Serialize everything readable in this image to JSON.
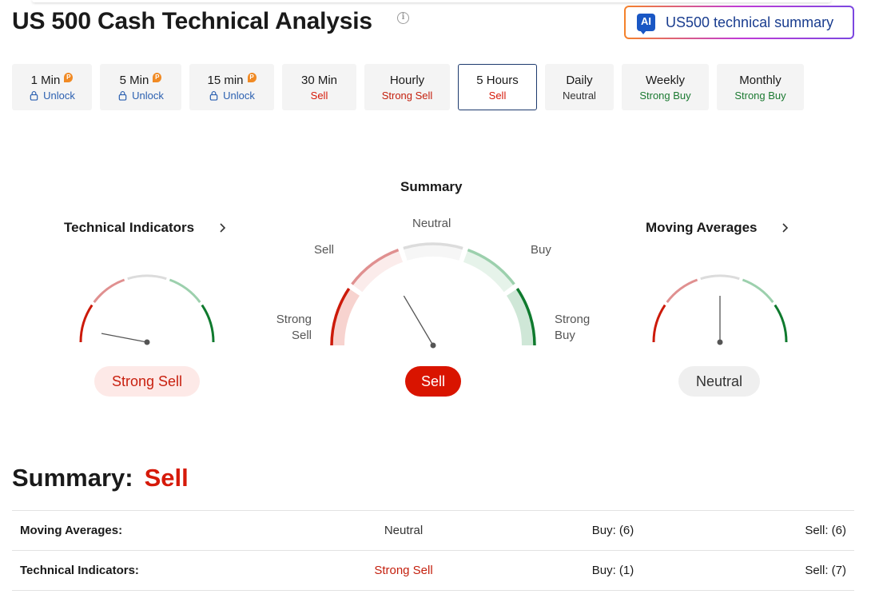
{
  "header": {
    "title": "US 500 Cash Technical Analysis",
    "info_icon": "info-icon",
    "ai_button": {
      "badge": "AI",
      "label": "US500 technical summary"
    }
  },
  "timeframes": [
    {
      "label": "1 Min",
      "status": "Unlock",
      "tone": "unlock",
      "locked": true,
      "active": false
    },
    {
      "label": "5 Min",
      "status": "Unlock",
      "tone": "unlock",
      "locked": true,
      "active": false
    },
    {
      "label": "15 min",
      "status": "Unlock",
      "tone": "unlock",
      "locked": true,
      "active": false
    },
    {
      "label": "30 Min",
      "status": "Sell",
      "tone": "sell",
      "locked": false,
      "active": false
    },
    {
      "label": "Hourly",
      "status": "Strong Sell",
      "tone": "ssell",
      "locked": false,
      "active": false
    },
    {
      "label": "5 Hours",
      "status": "Sell",
      "tone": "sell",
      "locked": false,
      "active": true
    },
    {
      "label": "Daily",
      "status": "Neutral",
      "tone": "neutral",
      "locked": false,
      "active": false
    },
    {
      "label": "Weekly",
      "status": "Strong Buy",
      "tone": "sbuy",
      "locked": false,
      "active": false
    },
    {
      "label": "Monthly",
      "status": "Strong Buy",
      "tone": "sbuy",
      "locked": false,
      "active": false
    }
  ],
  "gauges": {
    "technical": {
      "title": "Technical Indicators",
      "result": "Strong Sell",
      "needle_level": 0.06
    },
    "summary": {
      "title": "Summary",
      "result": "Sell",
      "needle_level": 0.33,
      "labels": {
        "strong_sell": [
          "Strong",
          "Sell"
        ],
        "sell": "Sell",
        "neutral": "Neutral",
        "buy": "Buy",
        "strong_buy": [
          "Strong",
          "Buy"
        ]
      }
    },
    "moving": {
      "title": "Moving Averages",
      "result": "Neutral",
      "needle_level": 0.5
    }
  },
  "summary": {
    "heading": "Summary:",
    "value": "Sell",
    "rows": [
      {
        "name": "Moving Averages:",
        "value": "Neutral",
        "tone": "neutral",
        "buy": "Buy: (6)",
        "sell": "Sell: (6)"
      },
      {
        "name": "Technical Indicators:",
        "value": "Strong Sell",
        "tone": "ssell",
        "buy": "Buy: (1)",
        "sell": "Sell: (7)"
      }
    ]
  },
  "colors": {
    "strong_sell": "#c4200e",
    "sell": "#d61a0a",
    "neutral": "#333333",
    "strong_buy": "#1c7a32",
    "accent": "#1d3a6e"
  }
}
